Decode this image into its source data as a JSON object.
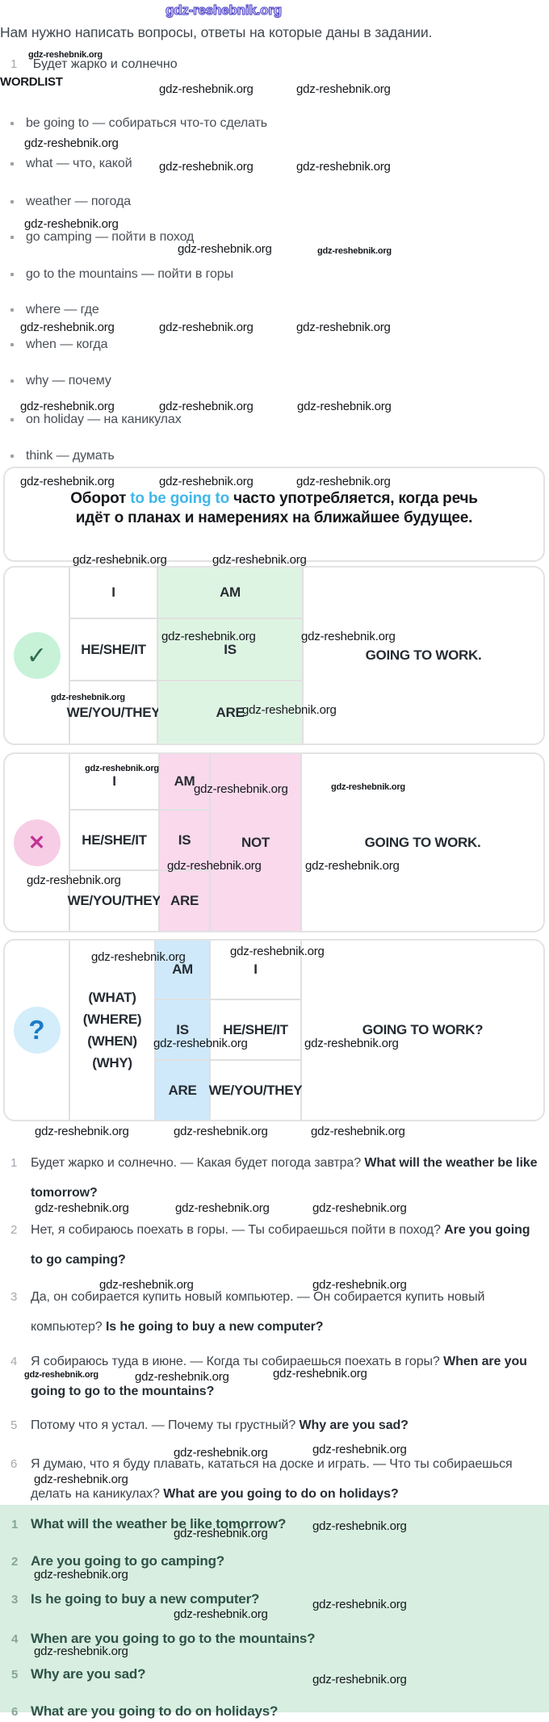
{
  "watermark": "gdz-reshebnik.org",
  "colors": {
    "highlight": "#41b7e9",
    "affirmative_cell": "#def4e3",
    "negative_cell": "#fad9ed",
    "question_cell": "#cfe9fa",
    "answers_bg": "#d7eee0"
  },
  "intro": {
    "text": "Нам нужно написать вопросы, ответы на которые даны в задании.",
    "task_number": "1",
    "task_text": "Будет жарко и солнечно"
  },
  "wordlist": {
    "title": "WORDLIST",
    "items": [
      "be going to — собираться что-то сделать",
      "what — что, какой",
      "weather — погода",
      "go camping — пойти в поход",
      "go to the mountains — пойти в горы",
      "where — где",
      "when — когда",
      "why — почему",
      "on holiday — на каникулах",
      "think — думать"
    ]
  },
  "infobox": {
    "pre": "Оборот ",
    "highlight": "to be going to",
    "post": " часто употребляется, когда речь идёт о планах и намерениях на ближайшее будущее."
  },
  "tables": {
    "affirmative": {
      "glyph": "✓",
      "pronouns": [
        "I",
        "HE/SHE/IT",
        "WE/YOU/THEY"
      ],
      "verbs": [
        "AM",
        "IS",
        "ARE"
      ],
      "tail": "GOING TO WORK."
    },
    "negative": {
      "glyph": "✕",
      "pronouns": [
        "I",
        "HE/SHE/IT",
        "WE/YOU/THEY"
      ],
      "verbs": [
        "AM",
        "IS",
        "ARE"
      ],
      "not_label": "NOT",
      "tail": "GOING TO WORK."
    },
    "question": {
      "glyph": "?",
      "wh_words": [
        "(WHAT)",
        "(WHERE)",
        "(WHEN)",
        "(WHY)"
      ],
      "verbs": [
        "AM",
        "IS",
        "ARE"
      ],
      "pronouns": [
        "I",
        "HE/SHE/IT",
        "WE/YOU/THEY"
      ],
      "tail": "GOING TO WORK?"
    }
  },
  "explanations": [
    {
      "num": "1",
      "ru": "Будет жарко и солнечно. — Какая будет погода завтра?",
      "en": "What will the weather be like tomorrow?"
    },
    {
      "num": "2",
      "ru": "Нет, я собираюсь поехать в горы. — Ты собираешься пойти в поход?",
      "en": "Are you going to go camping?"
    },
    {
      "num": "3",
      "ru": "Да, он собирается купить новый компьютер. — Он собирается купить новый компьютер?",
      "en": "Is he going to buy a new computer?"
    },
    {
      "num": "4",
      "ru": "Я собираюсь туда в июне. — Когда ты собираешься поехать в горы?",
      "en": "When are you going to go to the mountains?"
    },
    {
      "num": "5",
      "ru": "Потому что я устал. — Почему ты грустный?",
      "en": "Why are you sad?"
    },
    {
      "num": "6",
      "ru": "Я думаю, что я буду плавать, кататься на доске и играть. — Что ты собираешься делать на каникулах?",
      "en": "What are you going to do on holidays?"
    }
  ],
  "answers": {
    "items": [
      {
        "num": "1",
        "text": "What will the weather be like tomorrow?"
      },
      {
        "num": "2",
        "text": "Are you going to go camping?"
      },
      {
        "num": "3",
        "text": "Is he going to buy a new computer?"
      },
      {
        "num": "4",
        "text": "When are you going to go to the mountains?"
      },
      {
        "num": "5",
        "text": "Why are you sad?"
      },
      {
        "num": "6",
        "text": "What are you going to do on holidays?"
      }
    ]
  }
}
